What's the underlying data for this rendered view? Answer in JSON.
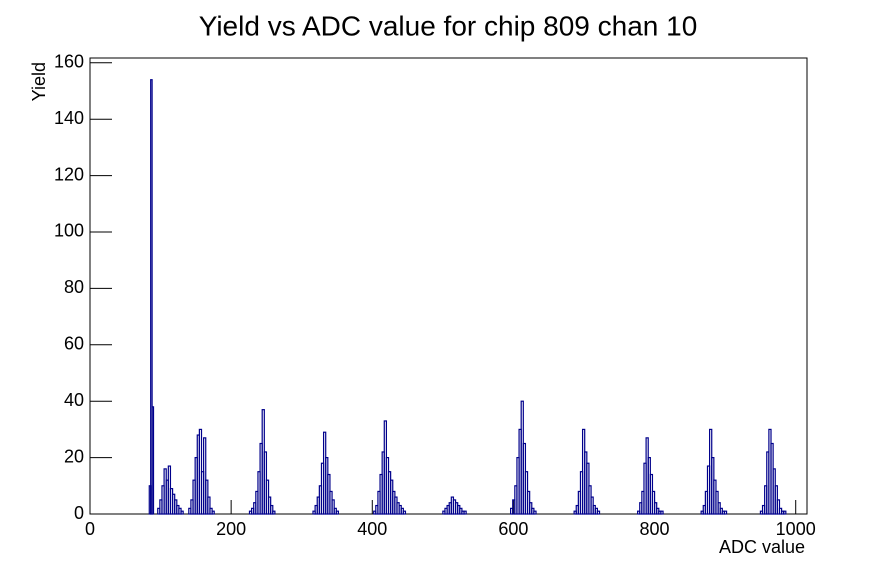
{
  "chart_data": {
    "type": "histogram",
    "title": "Yield vs ADC value for chip 809 chan 10",
    "xlabel": "ADC value",
    "ylabel": "Yield",
    "color": "#00008b",
    "bins": [
      0,
      84,
      86,
      88,
      90,
      96,
      99,
      102,
      105,
      108,
      111,
      114,
      117,
      120,
      123,
      126,
      129,
      132,
      140,
      143,
      146,
      149,
      152,
      155,
      158,
      161,
      164,
      167,
      170,
      173,
      176,
      226,
      229,
      232,
      235,
      238,
      241,
      244,
      247,
      250,
      253,
      256,
      259,
      262,
      316,
      319,
      322,
      325,
      328,
      331,
      334,
      337,
      340,
      343,
      346,
      349,
      352,
      402,
      405,
      408,
      411,
      414,
      417,
      420,
      423,
      426,
      429,
      432,
      435,
      438,
      441,
      444,
      447,
      500,
      503,
      506,
      509,
      512,
      515,
      518,
      521,
      524,
      527,
      530,
      533,
      536,
      596,
      599,
      602,
      605,
      608,
      611,
      614,
      617,
      620,
      623,
      626,
      629,
      632,
      686,
      689,
      692,
      695,
      698,
      701,
      704,
      707,
      710,
      713,
      716,
      719,
      722,
      776,
      779,
      782,
      785,
      788,
      791,
      794,
      797,
      800,
      803,
      806,
      809,
      812,
      866,
      869,
      872,
      875,
      878,
      881,
      884,
      887,
      890,
      893,
      896,
      899,
      902,
      950,
      953,
      956,
      959,
      962,
      965,
      968,
      971,
      974,
      977,
      980,
      983,
      986,
      1016
    ],
    "counts": [
      0,
      10,
      154,
      38,
      0,
      2,
      5,
      10,
      16,
      12,
      17,
      9,
      7,
      5,
      3,
      2,
      1,
      0,
      2,
      5,
      12,
      20,
      28,
      30,
      15,
      27,
      12,
      6,
      2,
      1,
      0,
      1,
      2,
      4,
      8,
      15,
      25,
      37,
      22,
      12,
      6,
      3,
      1,
      0,
      1,
      3,
      6,
      10,
      18,
      29,
      20,
      14,
      8,
      5,
      2,
      1,
      0,
      1,
      3,
      8,
      14,
      22,
      33,
      20,
      15,
      12,
      8,
      6,
      4,
      3,
      2,
      1,
      0,
      1,
      2,
      3,
      4,
      6,
      5,
      4,
      3,
      2,
      1,
      1,
      0,
      0,
      2,
      5,
      10,
      20,
      30,
      40,
      25,
      15,
      8,
      4,
      2,
      1,
      0,
      1,
      3,
      8,
      15,
      30,
      22,
      18,
      10,
      6,
      3,
      2,
      1,
      0,
      1,
      4,
      8,
      18,
      27,
      20,
      14,
      8,
      4,
      2,
      1,
      1,
      0,
      1,
      3,
      8,
      17,
      30,
      20,
      12,
      8,
      4,
      2,
      1,
      1,
      0,
      1,
      3,
      10,
      22,
      30,
      25,
      16,
      10,
      5,
      2,
      1,
      1,
      0
    ],
    "xlim": [
      0,
      1016
    ],
    "ylim": [
      0,
      161.7
    ],
    "xticks": [
      0,
      200,
      400,
      600,
      800,
      1000
    ],
    "yticks": [
      0,
      20,
      40,
      60,
      80,
      100,
      120,
      140,
      160
    ]
  }
}
